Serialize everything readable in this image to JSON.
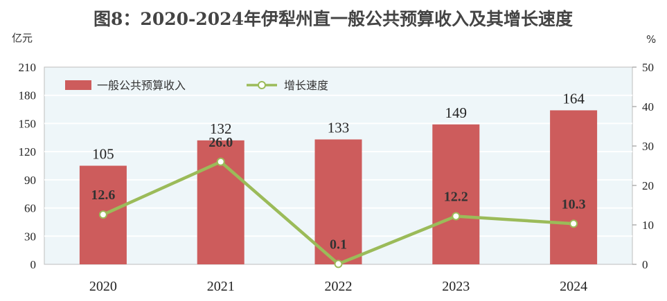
{
  "chart_data": {
    "type": "bar",
    "title": "图8：2020-2024年伊犁州直一般公共预算收入及其增长速度",
    "ylabel": "亿元",
    "y2label": "%",
    "categories": [
      "2020",
      "2021",
      "2022",
      "2023",
      "2024"
    ],
    "ylim": [
      0,
      210
    ],
    "yticks": [
      "0",
      "30",
      "60",
      "90",
      "120",
      "150",
      "180",
      "210"
    ],
    "y2lim": [
      0,
      50
    ],
    "y2ticks": [
      "0",
      "10",
      "20",
      "30",
      "40",
      "50"
    ],
    "legend_position": "top-left",
    "grid": true,
    "series": [
      {
        "name": "一般公共预算收入",
        "type": "bar",
        "axis": "left",
        "color": "#cd5c5c",
        "values": [
          105,
          132,
          133,
          149,
          164
        ],
        "labels": [
          "105",
          "132",
          "133",
          "149",
          "164"
        ]
      },
      {
        "name": "增长速度",
        "type": "line",
        "axis": "right",
        "color": "#9bbb59",
        "values": [
          12.6,
          26.0,
          0.1,
          12.2,
          10.3
        ],
        "labels": [
          "12.6",
          "26.0",
          "0.1",
          "12.2",
          "10.3"
        ]
      }
    ]
  }
}
